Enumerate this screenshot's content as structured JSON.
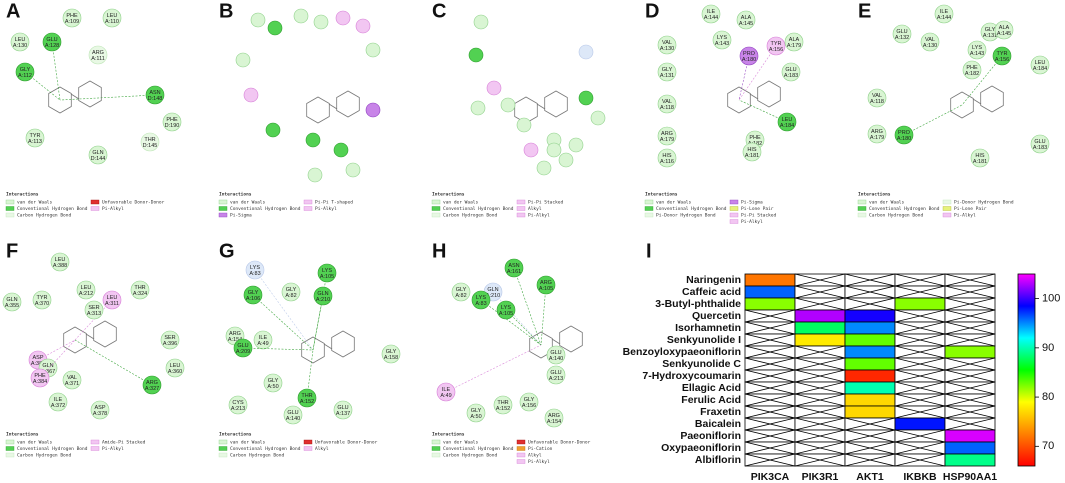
{
  "panels": [
    {
      "letter": "A",
      "heading": "Interactions",
      "residues": [
        {
          "name": "PHE",
          "id": "A:109"
        },
        {
          "name": "LEU",
          "id": "A:110"
        },
        {
          "name": "LEU",
          "id": "A:130"
        },
        {
          "name": "GLU",
          "id": "A:128"
        },
        {
          "name": "ARG",
          "id": "A:111"
        },
        {
          "name": "GLY",
          "id": "A:112"
        },
        {
          "name": "ASN",
          "id": "D:148"
        },
        {
          "name": "PHE",
          "id": "D:190"
        },
        {
          "name": "THR",
          "id": "D:145"
        },
        {
          "name": "TYR",
          "id": "A:113"
        },
        {
          "name": "GLN",
          "id": "D:144"
        }
      ],
      "legend": [
        "van der Waals",
        "Conventional Hydrogen Bond",
        "Carbon Hydrogen Bond",
        "Unfavorable Donor-Donor",
        "Pi-Alkyl"
      ]
    },
    {
      "letter": "B",
      "heading": "Interactions",
      "residues": [],
      "legend": [
        "van der Waals",
        "Conventional Hydrogen Bond",
        "Pi-Sigma",
        "Pi-Pi T-shaped",
        "Pi-Alkyl"
      ]
    },
    {
      "letter": "C",
      "heading": "Interactions",
      "residues": [],
      "legend": [
        "van der Waals",
        "Conventional Hydrogen Bond",
        "Carbon Hydrogen Bond",
        "Pi-Pi Stacked",
        "Alkyl",
        "Pi-Alkyl"
      ]
    },
    {
      "letter": "D",
      "heading": "Interactions",
      "residues": [
        {
          "name": "ILE",
          "id": "A:144"
        },
        {
          "name": "ALA",
          "id": "A:145"
        },
        {
          "name": "LYS",
          "id": "A:143"
        },
        {
          "name": "VAL",
          "id": "A:130"
        },
        {
          "name": "PRO",
          "id": "A:180"
        },
        {
          "name": "TYR",
          "id": "A:156"
        },
        {
          "name": "ALA",
          "id": "A:179"
        },
        {
          "name": "GLY",
          "id": "A:131"
        },
        {
          "name": "GLU",
          "id": "A:183"
        },
        {
          "name": "VAL",
          "id": "A:118"
        },
        {
          "name": "LEU",
          "id": "A:184"
        },
        {
          "name": "ARG",
          "id": "A:179"
        },
        {
          "name": "PHE",
          "id": "A:182"
        },
        {
          "name": "HIS",
          "id": "A:181"
        },
        {
          "name": "HIS",
          "id": "A:116"
        }
      ],
      "legend": [
        "van der Waals",
        "Conventional Hydrogen Bond",
        "Pi-Donor Hydrogen Bond",
        "Pi-Sigma",
        "Pi-Lone Pair",
        "Pi-Pi Stacked",
        "Pi-Alkyl"
      ]
    },
    {
      "letter": "E",
      "heading": "Interactions",
      "residues": [
        {
          "name": "ILE",
          "id": "A:144"
        },
        {
          "name": "GLU",
          "id": "A:132"
        },
        {
          "name": "VAL",
          "id": "A:130"
        },
        {
          "name": "GLY",
          "id": "A:131"
        },
        {
          "name": "ALA",
          "id": "A:145"
        },
        {
          "name": "LYS",
          "id": "A:143"
        },
        {
          "name": "TYR",
          "id": "A:156"
        },
        {
          "name": "PHE",
          "id": "A:182"
        },
        {
          "name": "LEU",
          "id": "A:184"
        },
        {
          "name": "VAL",
          "id": "A:118"
        },
        {
          "name": "ARG",
          "id": "A:179"
        },
        {
          "name": "PRO",
          "id": "A:180"
        },
        {
          "name": "GLU",
          "id": "A:183"
        },
        {
          "name": "HIS",
          "id": "A:181"
        }
      ],
      "legend": [
        "van der Waals",
        "Conventional Hydrogen Bond",
        "Carbon Hydrogen Bond",
        "Pi-Donor Hydrogen Bond",
        "Pi-Lone Pair",
        "Pi-Alkyl"
      ]
    },
    {
      "letter": "F",
      "heading": "Interactions",
      "residues": [
        {
          "name": "LEU",
          "id": "A:388"
        },
        {
          "name": "GLN",
          "id": "A:355"
        },
        {
          "name": "TYR",
          "id": "A:370"
        },
        {
          "name": "LEU",
          "id": "A:212"
        },
        {
          "name": "LEU",
          "id": "A:311"
        },
        {
          "name": "THR",
          "id": "A:324"
        },
        {
          "name": "SER",
          "id": "A:313"
        },
        {
          "name": "SER",
          "id": "A:396"
        },
        {
          "name": "ASP",
          "id": "A:385"
        },
        {
          "name": "GLN",
          "id": "A:367"
        },
        {
          "name": "LEU",
          "id": "A:360"
        },
        {
          "name": "PHE",
          "id": "A:384"
        },
        {
          "name": "VAL",
          "id": "A:371"
        },
        {
          "name": "ARG",
          "id": "A:327"
        },
        {
          "name": "ILE",
          "id": "A:372"
        },
        {
          "name": "ASP",
          "id": "A:378"
        }
      ],
      "legend": [
        "van der Waals",
        "Conventional Hydrogen Bond",
        "Carbon Hydrogen Bond",
        "Amide-Pi Stacked",
        "Pi-Alkyl"
      ]
    },
    {
      "letter": "G",
      "heading": "Interactions",
      "residues": [
        {
          "name": "LYS",
          "id": "A:83"
        },
        {
          "name": "LYS",
          "id": "A:105"
        },
        {
          "name": "GLY",
          "id": "A:106"
        },
        {
          "name": "GLY",
          "id": "A:82"
        },
        {
          "name": "GLN",
          "id": "A:210"
        },
        {
          "name": "ARG",
          "id": "A:154"
        },
        {
          "name": "ILE",
          "id": "A:49"
        },
        {
          "name": "GLU",
          "id": "A:209"
        },
        {
          "name": "GLY",
          "id": "A:158"
        },
        {
          "name": "GLY",
          "id": "A:50"
        },
        {
          "name": "CYS",
          "id": "A:213"
        },
        {
          "name": "THR",
          "id": "A:152"
        },
        {
          "name": "GLU",
          "id": "A:140"
        },
        {
          "name": "GLU",
          "id": "A:137"
        }
      ],
      "legend": [
        "van der Waals",
        "Conventional Hydrogen Bond",
        "Carbon Hydrogen Bond",
        "Unfavorable Donor-Donor",
        "Alkyl"
      ]
    },
    {
      "letter": "H",
      "heading": "Interactions",
      "residues": [
        {
          "name": "ASN",
          "id": "A:161"
        },
        {
          "name": "GLN",
          "id": "A:210"
        },
        {
          "name": "ARG",
          "id": "A:105"
        },
        {
          "name": "GLY",
          "id": "A:82"
        },
        {
          "name": "LYS",
          "id": "A:83"
        },
        {
          "name": "LYS",
          "id": "A:105"
        },
        {
          "name": "GLU",
          "id": "A:140"
        },
        {
          "name": "GLU",
          "id": "A:213"
        },
        {
          "name": "ILE",
          "id": "A:49"
        },
        {
          "name": "GLY",
          "id": "A:50"
        },
        {
          "name": "THR",
          "id": "A:152"
        },
        {
          "name": "GLY",
          "id": "A:156"
        },
        {
          "name": "ARG",
          "id": "A:154"
        }
      ],
      "legend": [
        "van der Waals",
        "Conventional Hydrogen Bond",
        "Carbon Hydrogen Bond",
        "Unfavorable Donor-Donor",
        "Pi-Cation",
        "Alkyl",
        "Pi-Alkyl"
      ]
    }
  ],
  "chart_data": {
    "type": "heatmap",
    "letter": "I",
    "rows": [
      "Naringenin",
      "Caffeic acid",
      "3-Butyl-phthalide",
      "Quercetin",
      "Isorhamnetin",
      "Senkyunolide I",
      "Benzoyloxypaeoniflorin",
      "Senkyunolide C",
      "7-Hydroxycoumarin",
      "Ellagic Acid",
      "Ferulic Acid",
      "Fraxetin",
      "Baicalein",
      "Paeoniflorin",
      "Oxypaeoniflorin",
      "Albiflorin"
    ],
    "columns": [
      "PIK3CA",
      "PIK3R1",
      "AKT1",
      "IKBKB",
      "HSP90AA1"
    ],
    "values": [
      [
        72,
        null,
        null,
        null,
        null
      ],
      [
        96,
        null,
        null,
        null,
        null
      ],
      [
        82,
        null,
        null,
        82,
        null
      ],
      [
        null,
        103,
        99,
        null,
        null
      ],
      [
        null,
        88,
        95,
        null,
        null
      ],
      [
        null,
        78,
        83,
        null,
        null
      ],
      [
        null,
        null,
        95,
        null,
        82
      ],
      [
        null,
        null,
        83,
        null,
        null
      ],
      [
        null,
        null,
        68,
        null,
        null
      ],
      [
        null,
        null,
        90,
        null,
        null
      ],
      [
        null,
        null,
        77,
        null,
        null
      ],
      [
        null,
        null,
        77,
        null,
        null
      ],
      [
        null,
        null,
        null,
        98,
        null
      ],
      [
        null,
        null,
        null,
        null,
        104
      ],
      [
        null,
        null,
        null,
        null,
        96
      ],
      [
        null,
        null,
        null,
        null,
        89
      ]
    ],
    "zlim": [
      66,
      105
    ],
    "zticks": [
      70,
      80,
      90,
      100
    ],
    "colorscale": [
      "#ff0000",
      "#ff8000",
      "#ffff00",
      "#00ff00",
      "#00ffff",
      "#0000ff",
      "#ff00ff"
    ]
  }
}
